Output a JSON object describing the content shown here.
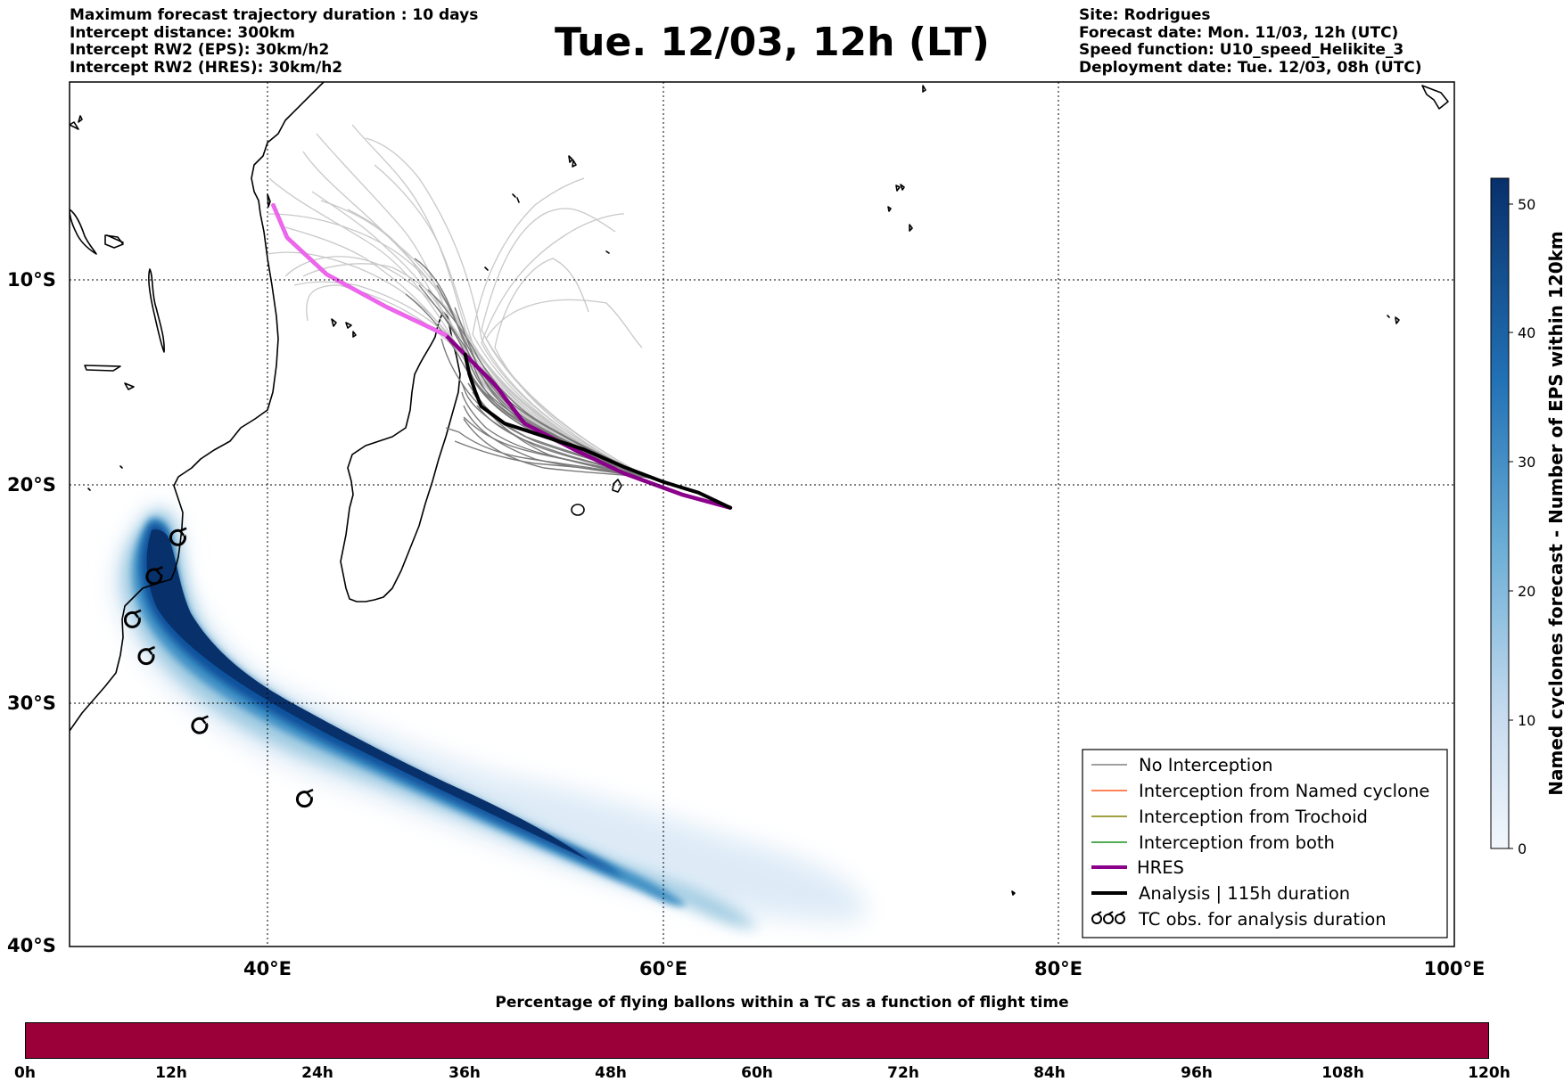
{
  "header_left": [
    "Maximum forecast trajectory duration : 10 days",
    "Intercept distance: 300km",
    "Intercept RW2 (EPS):  30km/h2",
    "Intercept RW2 (HRES): 30km/h2"
  ],
  "header_right": [
    "Site: Rodrigues",
    "Forecast date: Mon. 11/03, 12h (UTC)",
    "Speed function: U10_speed_Helikite_3",
    "Deployment date: Tue. 12/03, 08h (UTC)"
  ],
  "title": "Tue. 12/03, 12h (LT)",
  "map": {
    "lon_range": [
      30,
      100
    ],
    "lat_range": [
      -40,
      0
    ],
    "lon_ticks": [
      "40°E",
      "60°E",
      "80°E",
      "100°E"
    ],
    "lat_ticks": [
      "10°S",
      "20°S",
      "30°S",
      "40°S"
    ],
    "grid": true,
    "launch_site": {
      "lon": 63.4,
      "lat": -19.7
    }
  },
  "legend": {
    "placement": "lower-right",
    "items": [
      {
        "label": "No Interception",
        "color": "#808080"
      },
      {
        "label": "Interception from Named cyclone",
        "color": "#ff5a1f"
      },
      {
        "label": "Interception from Trochoid",
        "color": "#808000"
      },
      {
        "label": "Interception from both",
        "color": "#1a8f1a"
      },
      {
        "label": "HRES",
        "color": "#8b008b"
      },
      {
        "label": "Analysis | 115h duration",
        "color": "#000000"
      },
      {
        "label": "TC obs. for analysis duration",
        "color": "#000000",
        "symbol": "cyclone-icon"
      }
    ]
  },
  "colorbar": {
    "label": "Named cyclones forecast - Number of EPS within 120km",
    "min": 0,
    "max": 52,
    "ticks": [
      "0",
      "10",
      "20",
      "30",
      "40",
      "50"
    ],
    "colors": [
      "#deebf7",
      "#08306b"
    ]
  },
  "timeline": {
    "title": "Percentage of flying ballons within a TC as a function of flight time",
    "ticks": [
      "0h",
      "12h",
      "24h",
      "36h",
      "48h",
      "60h",
      "72h",
      "84h",
      "96h",
      "108h",
      "120h"
    ],
    "fill_color": "#9b0039"
  },
  "chart_data": {
    "type": "line",
    "series": [
      {
        "name": "Analysis | 115h duration",
        "lon": [
          63.4,
          61.8,
          60.0,
          58.0,
          56.0,
          54.0,
          52.0,
          50.8,
          50.5,
          50.2,
          50.0
        ],
        "lat": [
          -19.7,
          -19.0,
          -18.5,
          -17.8,
          -17.0,
          -16.4,
          -15.8,
          -15.0,
          -14.3,
          -13.5,
          -12.6
        ]
      },
      {
        "name": "HRES",
        "lon": [
          63.4,
          61.0,
          58.0,
          55.5,
          53.0,
          51.5,
          50.2,
          49.0,
          46.0,
          43.0,
          41.0,
          40.3
        ],
        "lat": [
          -19.7,
          -19.1,
          -18.1,
          -17.0,
          -15.8,
          -14.0,
          -12.8,
          -11.7,
          -10.4,
          -8.9,
          -7.2,
          -5.7
        ]
      }
    ],
    "tc_obs": [
      {
        "lon": 35.5,
        "lat": -21.1
      },
      {
        "lon": 34.3,
        "lat": -22.9
      },
      {
        "lon": 33.2,
        "lat": -24.9
      },
      {
        "lon": 33.9,
        "lat": -26.6
      },
      {
        "lon": 36.6,
        "lat": -29.8
      },
      {
        "lon": 41.9,
        "lat": -33.2
      }
    ]
  }
}
